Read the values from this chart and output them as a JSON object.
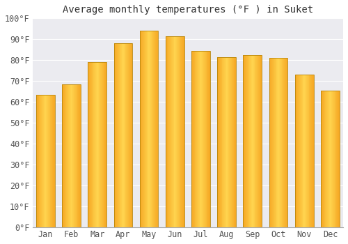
{
  "title": "Average monthly temperatures (°F ) in Suket",
  "months": [
    "Jan",
    "Feb",
    "Mar",
    "Apr",
    "May",
    "Jun",
    "Jul",
    "Aug",
    "Sep",
    "Oct",
    "Nov",
    "Dec"
  ],
  "values": [
    63.5,
    68.5,
    79,
    88,
    94,
    91.5,
    84.5,
    81.5,
    82.5,
    81,
    73,
    65.5
  ],
  "bar_color_center": "#FFD54F",
  "bar_color_edge": "#F5A623",
  "bar_border_color": "#B8860B",
  "background_color": "#ffffff",
  "plot_bg_color": "#ebebf0",
  "grid_color": "#ffffff",
  "yticks": [
    0,
    10,
    20,
    30,
    40,
    50,
    60,
    70,
    80,
    90,
    100
  ],
  "ylim": [
    0,
    100
  ],
  "title_fontsize": 10,
  "tick_fontsize": 8.5,
  "font_family": "monospace",
  "tick_color": "#555555"
}
